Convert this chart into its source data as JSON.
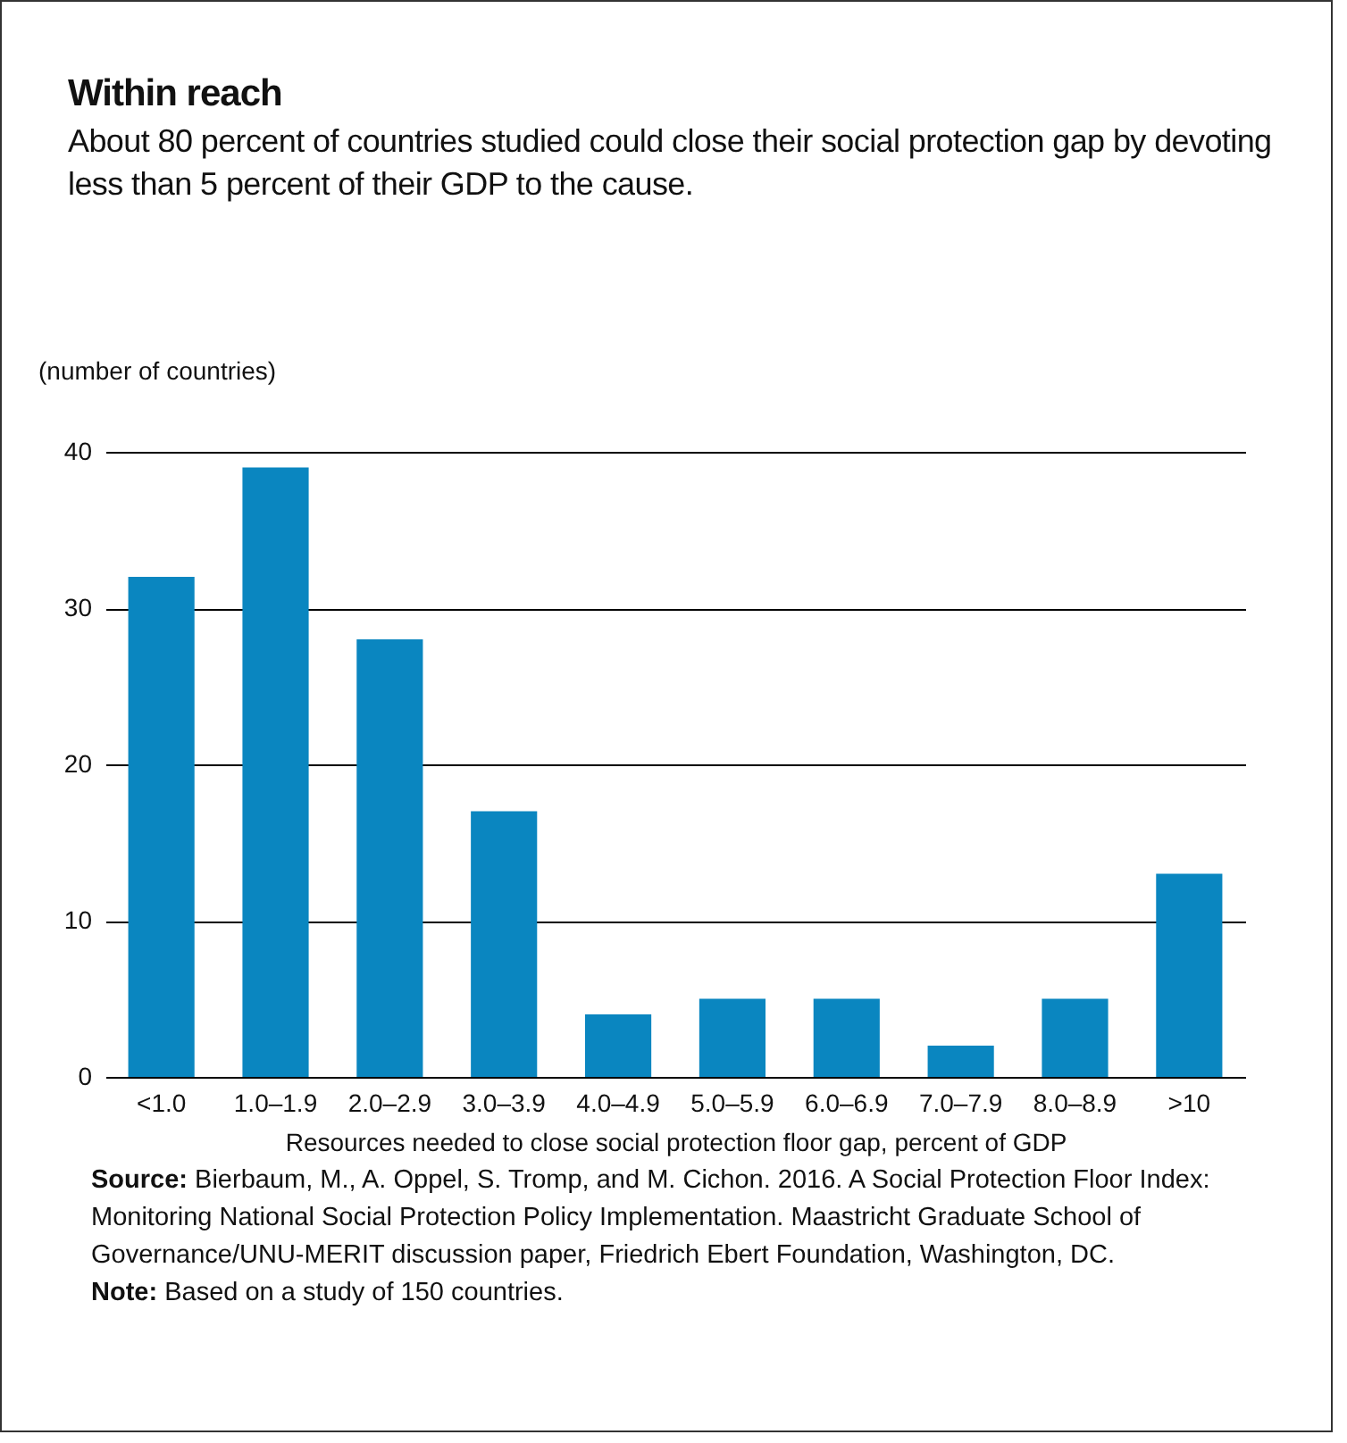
{
  "chart_data": {
    "type": "bar",
    "title": "Within reach",
    "subtitle": "About 80 percent of countries studied could close their social protection gap by devoting less than 5 percent of their GDP to the cause.",
    "ylabel": "(number of countries)",
    "xlabel": "Resources needed to close social protection floor gap, percent of GDP",
    "categories": [
      "<1.0",
      "1.0–1.9",
      "2.0–2.9",
      "3.0–3.9",
      "4.0–4.9",
      "5.0–5.9",
      "6.0–6.9",
      "7.0–7.9",
      "8.0–8.9",
      ">10"
    ],
    "values": [
      32,
      39,
      28,
      17,
      4,
      5,
      5,
      2,
      5,
      13
    ],
    "color": "#0a86c0",
    "ylim": [
      0,
      40
    ],
    "yticks": [
      0,
      10,
      20,
      30,
      40
    ],
    "grid": "y",
    "annotations": [
      "Source: Bierbaum, M., A. Oppel, S. Tromp, and M. Cichon. 2016. A Social Protection Floor Index: Monitoring National Social Protection Policy Implementation. Maastricht Graduate School of Governance/UNU-MERIT discussion paper, Friedrich Ebert Foundation, Washington, DC.",
      "Note: Based on a study of 150 countries."
    ]
  }
}
